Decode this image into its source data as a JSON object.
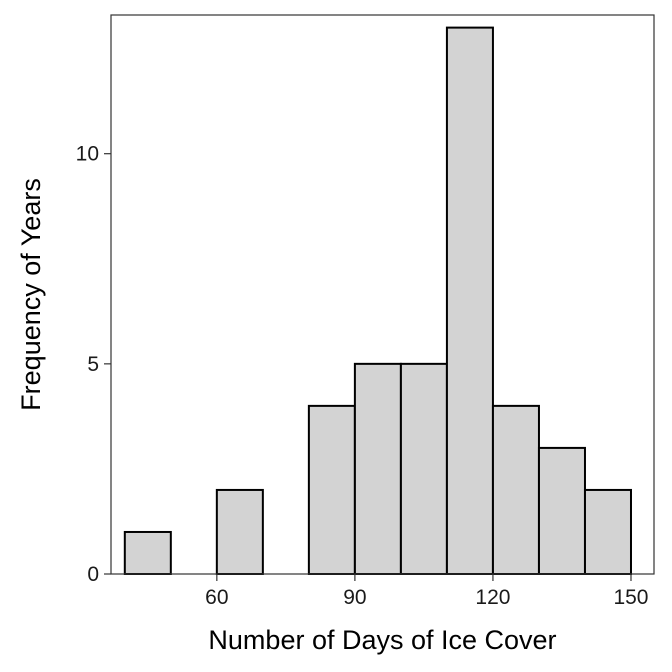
{
  "chart_data": {
    "type": "histogram",
    "xlabel": "Number of Days of Ice Cover",
    "ylabel": "Frequency of Years",
    "xlim": [
      37,
      155
    ],
    "ylim": [
      0,
      13.3
    ],
    "x_ticks": [
      60,
      90,
      120,
      150
    ],
    "y_ticks": [
      0,
      5,
      10
    ],
    "bins": [
      {
        "start": 40,
        "end": 50,
        "count": 1
      },
      {
        "start": 50,
        "end": 60,
        "count": 0
      },
      {
        "start": 60,
        "end": 70,
        "count": 2
      },
      {
        "start": 70,
        "end": 80,
        "count": 0
      },
      {
        "start": 80,
        "end": 90,
        "count": 4
      },
      {
        "start": 90,
        "end": 100,
        "count": 5
      },
      {
        "start": 100,
        "end": 110,
        "count": 5
      },
      {
        "start": 110,
        "end": 120,
        "count": 13
      },
      {
        "start": 120,
        "end": 130,
        "count": 4
      },
      {
        "start": 130,
        "end": 140,
        "count": 3
      },
      {
        "start": 140,
        "end": 150,
        "count": 2
      }
    ],
    "grid": false,
    "colors": {
      "bar_fill": "#d3d3d3",
      "bar_stroke": "#000000",
      "panel_border": "#333333"
    }
  }
}
